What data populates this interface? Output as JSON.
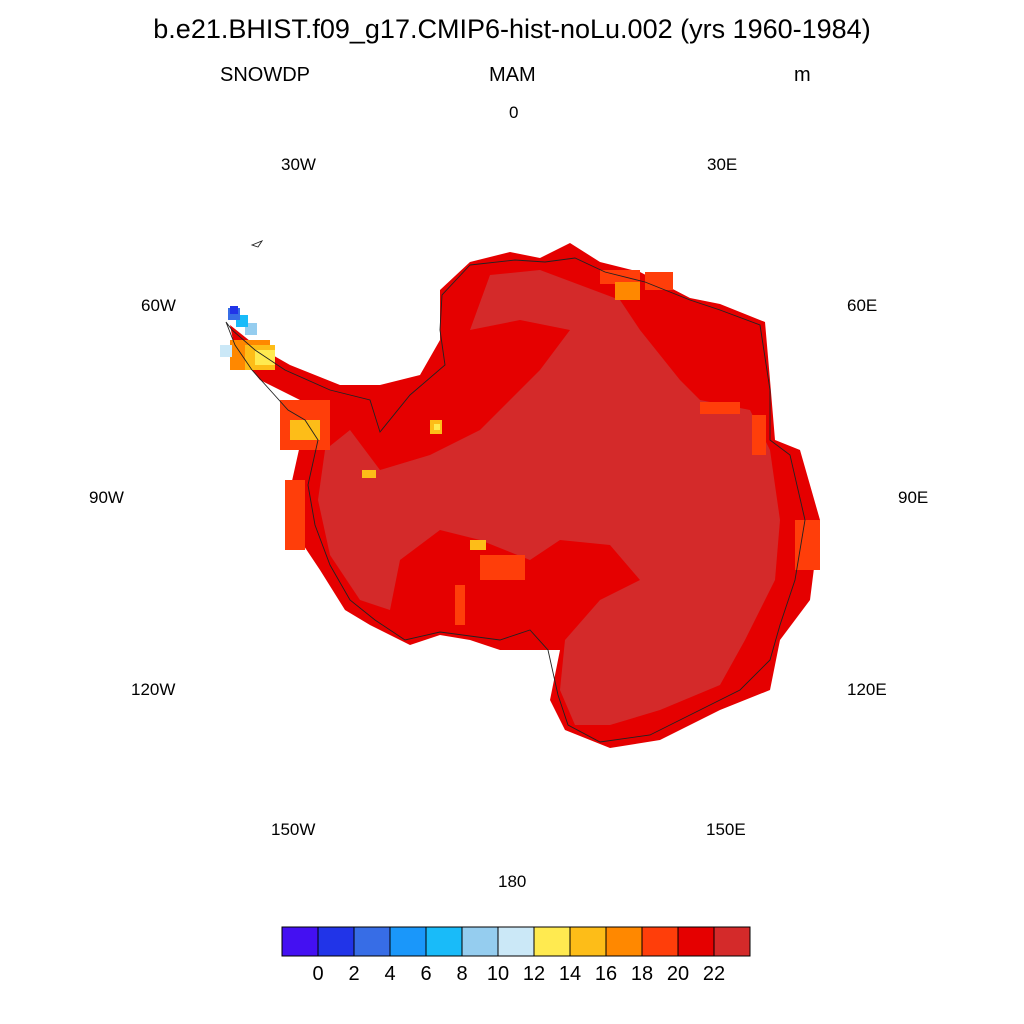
{
  "title": "b.e21.BHIST.f09_g17.CMIP6-hist-noLu.002 (yrs 1960-1984)",
  "variable": "SNOWDP",
  "season": "MAM",
  "units": "m",
  "longitude_labels": {
    "lon_0": "0",
    "lon_30e": "30E",
    "lon_60e": "60E",
    "lon_90e": "90E",
    "lon_120e": "120E",
    "lon_150e": "150E",
    "lon_180": "180",
    "lon_150w": "150W",
    "lon_120w": "120W",
    "lon_90w": "90W",
    "lon_60w": "60W",
    "lon_30w": "30W"
  },
  "colorbar": {
    "colors": [
      "#4410f2",
      "#2134e8",
      "#376de6",
      "#1a97fa",
      "#19bbf9",
      "#95cdef",
      "#cbe8f7",
      "#ffea50",
      "#fdbd18",
      "#ff8800",
      "#ff3e0a",
      "#e50000",
      "#d42a2a"
    ],
    "labels": [
      "0",
      "2",
      "4",
      "6",
      "8",
      "10",
      "12",
      "14",
      "16",
      "18",
      "20",
      "22"
    ]
  },
  "map_colors": {
    "interior": "#d42a2a",
    "coastal": "#e50000",
    "edge": "#ff3e0a",
    "margin": "#ff8800",
    "warm": "#fdbd18",
    "yellow": "#ffea50",
    "pale": "#cbe8f7",
    "light_blue": "#95cdef",
    "sky": "#19bbf9",
    "blue": "#376de6",
    "deep_blue": "#2134e8"
  }
}
